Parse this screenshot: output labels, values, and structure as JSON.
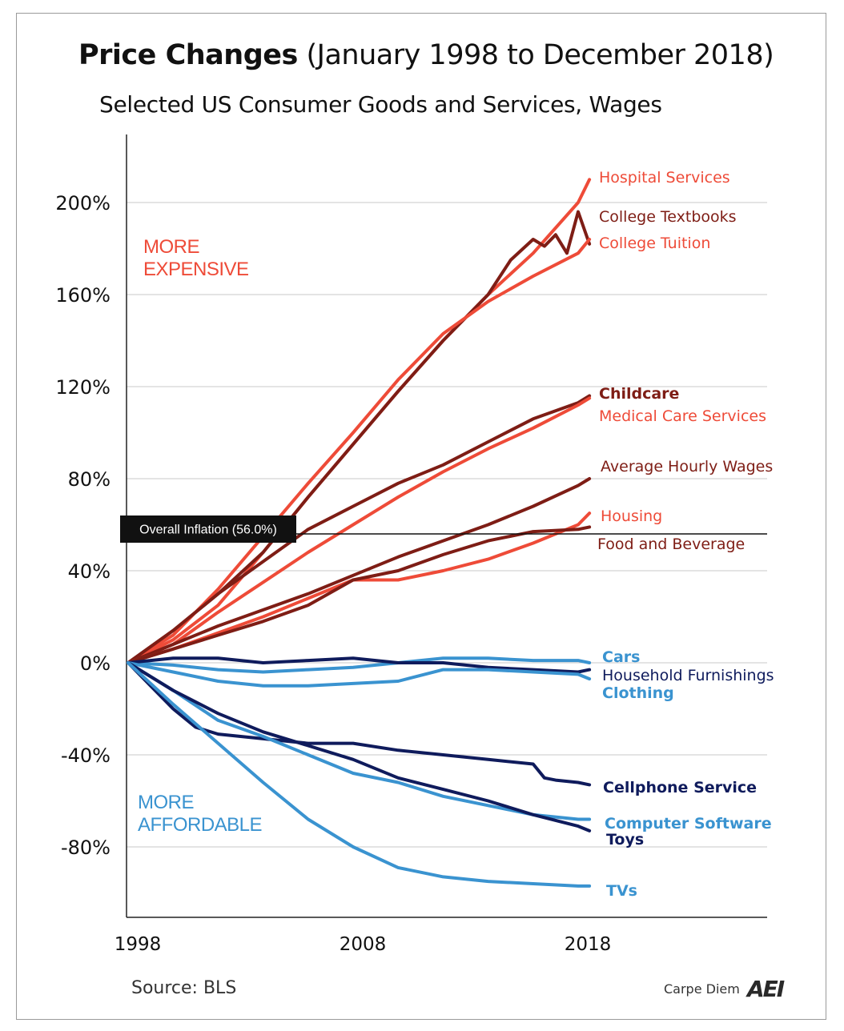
{
  "header": {
    "title_bold": "Price Changes",
    "title_rest": " (January 1998 to December 2018)",
    "subtitle": "Selected US Consumer Goods and Services, Wages"
  },
  "footer": {
    "source": "Source: BLS",
    "brand_text": "Carpe Diem",
    "brand_logo": "AEI"
  },
  "colors": {
    "red": "#ee4b38",
    "dark_red": "#7e1d15",
    "light_blue": "#3a93d0",
    "navy": "#0f1b5c",
    "grid": "#c8c8c8",
    "axis": "#222222"
  },
  "chart_data": {
    "type": "line",
    "title": "Price Changes (January 1998 to December 2018)",
    "subtitle": "Selected US Consumer Goods and Services, Wages",
    "xlabel": "",
    "ylabel": "",
    "xlim": [
      1998,
      2026
    ],
    "ylim": [
      -110,
      225
    ],
    "x_ticks": [
      {
        "value": 1998,
        "label": "1998"
      },
      {
        "value": 2008,
        "label": "2008"
      },
      {
        "value": 2018,
        "label": "2018"
      }
    ],
    "y_ticks": [
      {
        "value": 200,
        "label": "200%"
      },
      {
        "value": 160,
        "label": "160%"
      },
      {
        "value": 120,
        "label": "120%"
      },
      {
        "value": 80,
        "label": "80%"
      },
      {
        "value": 40,
        "label": "40%"
      },
      {
        "value": 0,
        "label": "0%"
      },
      {
        "value": -40,
        "label": "-40%"
      },
      {
        "value": -80,
        "label": "-80%"
      }
    ],
    "grid": true,
    "legend": "inline labels at line ends",
    "reference_line": {
      "value": 56.0,
      "label": "Overall Inflation (56.0%)"
    },
    "region_labels": [
      {
        "lines": [
          "MORE",
          "EXPENSIVE"
        ],
        "color": "#ee4b38"
      },
      {
        "lines": [
          "MORE",
          "AFFORDABLE"
        ],
        "color": "#3a93d0"
      }
    ],
    "series": [
      {
        "name": "Hospital Services",
        "color": "#ee4b38",
        "label_bold": false,
        "x": [
          1998,
          2000,
          2002,
          2004,
          2006,
          2008,
          2010,
          2012,
          2014,
          2016,
          2018,
          2018.5
        ],
        "y": [
          0,
          10,
          25,
          48,
          72,
          95,
          118,
          140,
          160,
          178,
          200,
          210
        ]
      },
      {
        "name": "College Textbooks",
        "color": "#7e1d15",
        "label_bold": false,
        "x": [
          1998,
          2000,
          2002,
          2004,
          2006,
          2008,
          2010,
          2012,
          2014,
          2015,
          2016,
          2016.5,
          2017,
          2017.5,
          2018,
          2018.5
        ],
        "y": [
          0,
          14,
          30,
          48,
          72,
          95,
          118,
          140,
          160,
          175,
          184,
          181,
          186,
          178,
          196,
          182
        ]
      },
      {
        "name": "College Tuition",
        "color": "#ee4b38",
        "label_bold": false,
        "x": [
          1998,
          2000,
          2002,
          2004,
          2006,
          2008,
          2010,
          2012,
          2014,
          2016,
          2018,
          2018.5
        ],
        "y": [
          0,
          12,
          32,
          55,
          78,
          100,
          123,
          143,
          157,
          168,
          178,
          184
        ]
      },
      {
        "name": "Childcare",
        "color": "#7e1d15",
        "label_bold": true,
        "x": [
          1998,
          2000,
          2002,
          2004,
          2006,
          2008,
          2010,
          2012,
          2014,
          2016,
          2018,
          2018.5
        ],
        "y": [
          0,
          14,
          30,
          44,
          58,
          68,
          78,
          86,
          96,
          106,
          113,
          116
        ]
      },
      {
        "name": "Medical Care Services",
        "color": "#ee4b38",
        "label_bold": false,
        "x": [
          1998,
          2000,
          2002,
          2004,
          2006,
          2008,
          2010,
          2012,
          2014,
          2016,
          2018,
          2018.5
        ],
        "y": [
          0,
          8,
          22,
          35,
          48,
          60,
          72,
          83,
          93,
          102,
          112,
          115
        ]
      },
      {
        "name": "Average Hourly Wages",
        "color": "#7e1d15",
        "label_bold": false,
        "x": [
          1998,
          2000,
          2002,
          2004,
          2006,
          2008,
          2010,
          2012,
          2014,
          2016,
          2018,
          2018.5
        ],
        "y": [
          0,
          8,
          16,
          23,
          30,
          38,
          46,
          53,
          60,
          68,
          77,
          80
        ]
      },
      {
        "name": "Housing",
        "color": "#ee4b38",
        "label_bold": false,
        "x": [
          1998,
          2000,
          2002,
          2004,
          2006,
          2008,
          2010,
          2012,
          2014,
          2016,
          2018,
          2018.5
        ],
        "y": [
          0,
          6,
          13,
          20,
          28,
          36,
          36,
          40,
          45,
          52,
          60,
          65
        ]
      },
      {
        "name": "Food and Beverage",
        "color": "#7e1d15",
        "label_bold": false,
        "x": [
          1998,
          2000,
          2002,
          2004,
          2006,
          2008,
          2010,
          2012,
          2014,
          2016,
          2018,
          2018.5
        ],
        "y": [
          0,
          6,
          12,
          18,
          25,
          36,
          40,
          47,
          53,
          57,
          58,
          59
        ]
      },
      {
        "name": "Cars",
        "color": "#3a93d0",
        "label_bold": true,
        "x": [
          1998,
          2000,
          2002,
          2004,
          2006,
          2008,
          2010,
          2012,
          2014,
          2016,
          2018,
          2018.5
        ],
        "y": [
          0,
          -1,
          -3,
          -4,
          -3,
          -2,
          0,
          2,
          2,
          1,
          1,
          0
        ]
      },
      {
        "name": "Household Furnishings",
        "color": "#0f1b5c",
        "label_bold": false,
        "x": [
          1998,
          2000,
          2002,
          2004,
          2006,
          2008,
          2010,
          2012,
          2014,
          2016,
          2018,
          2018.5
        ],
        "y": [
          0,
          2,
          2,
          0,
          1,
          2,
          0,
          0,
          -2,
          -3,
          -4,
          -3
        ]
      },
      {
        "name": "Clothing",
        "color": "#3a93d0",
        "label_bold": true,
        "x": [
          1998,
          2000,
          2002,
          2004,
          2006,
          2008,
          2010,
          2012,
          2014,
          2016,
          2018,
          2018.5
        ],
        "y": [
          0,
          -4,
          -8,
          -10,
          -10,
          -9,
          -8,
          -3,
          -3,
          -4,
          -5,
          -7
        ]
      },
      {
        "name": "Cellphone Service",
        "color": "#0f1b5c",
        "label_bold": true,
        "x": [
          1998,
          1999,
          2000,
          2001,
          2002,
          2004,
          2006,
          2008,
          2010,
          2012,
          2014,
          2016,
          2016.5,
          2017,
          2018,
          2018.5
        ],
        "y": [
          0,
          -10,
          -20,
          -28,
          -31,
          -33,
          -35,
          -35,
          -38,
          -40,
          -42,
          -44,
          -50,
          -51,
          -52,
          -53
        ]
      },
      {
        "name": "Computer Software",
        "color": "#3a93d0",
        "label_bold": true,
        "x": [
          1998,
          2000,
          2002,
          2004,
          2006,
          2008,
          2010,
          2012,
          2014,
          2016,
          2018,
          2018.5
        ],
        "y": [
          0,
          -12,
          -25,
          -32,
          -40,
          -48,
          -52,
          -58,
          -62,
          -66,
          -68,
          -68
        ]
      },
      {
        "name": "Toys",
        "color": "#0f1b5c",
        "label_bold": true,
        "x": [
          1998,
          2000,
          2002,
          2004,
          2006,
          2008,
          2010,
          2012,
          2014,
          2016,
          2018,
          2018.5
        ],
        "y": [
          0,
          -12,
          -22,
          -30,
          -36,
          -42,
          -50,
          -55,
          -60,
          -66,
          -71,
          -73
        ]
      },
      {
        "name": "TVs",
        "color": "#3a93d0",
        "label_bold": true,
        "x": [
          1998,
          2000,
          2002,
          2004,
          2006,
          2008,
          2010,
          2012,
          2014,
          2016,
          2018,
          2018.5
        ],
        "y": [
          0,
          -18,
          -35,
          -52,
          -68,
          -80,
          -89,
          -93,
          -95,
          -96,
          -97,
          -97
        ]
      }
    ]
  }
}
